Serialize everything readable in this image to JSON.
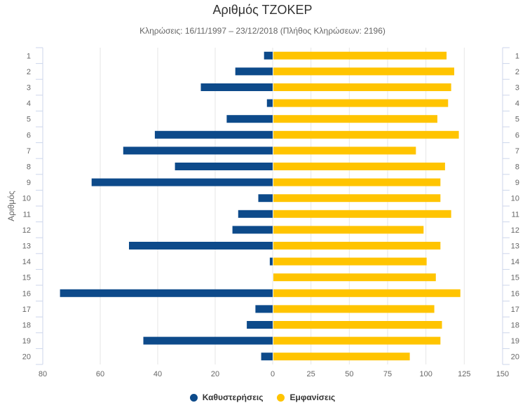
{
  "chart_data": {
    "type": "bar",
    "orientation": "horizontal",
    "layout": "diverging",
    "title": "Αριθμός ΤΖΟΚΕΡ",
    "subtitle": "Κληρώσεις: 16/11/1997 – 23/12/2018 (Πλήθος Κληρώσεων: 2196)",
    "ylabel": "Αριθμός",
    "categories": [
      "1",
      "2",
      "3",
      "4",
      "5",
      "6",
      "7",
      "8",
      "9",
      "10",
      "11",
      "12",
      "13",
      "14",
      "15",
      "16",
      "17",
      "18",
      "19",
      "20"
    ],
    "series": [
      {
        "name": "Καθυστερήσεις",
        "color": "#0d4a8a",
        "axis": "left",
        "values": [
          3,
          13,
          25,
          2,
          16,
          41,
          52,
          34,
          63,
          5,
          12,
          14,
          50,
          1,
          0,
          74,
          6,
          9,
          45,
          4
        ]
      },
      {
        "name": "Εμφανίσεις",
        "color": "#ffc400",
        "axis": "right",
        "values": [
          113,
          118,
          116,
          114,
          107,
          121,
          93,
          112,
          109,
          109,
          116,
          98,
          109,
          100,
          106,
          122,
          105,
          110,
          109,
          89
        ]
      }
    ],
    "left_axis": {
      "ticks": [
        "80",
        "60",
        "40",
        "20",
        "0"
      ],
      "range": [
        0,
        80
      ]
    },
    "right_axis": {
      "ticks": [
        "0",
        "25",
        "50",
        "75",
        "100",
        "125",
        "150"
      ],
      "range": [
        0,
        150
      ]
    },
    "grid": true,
    "legend_position": "bottom-center"
  }
}
